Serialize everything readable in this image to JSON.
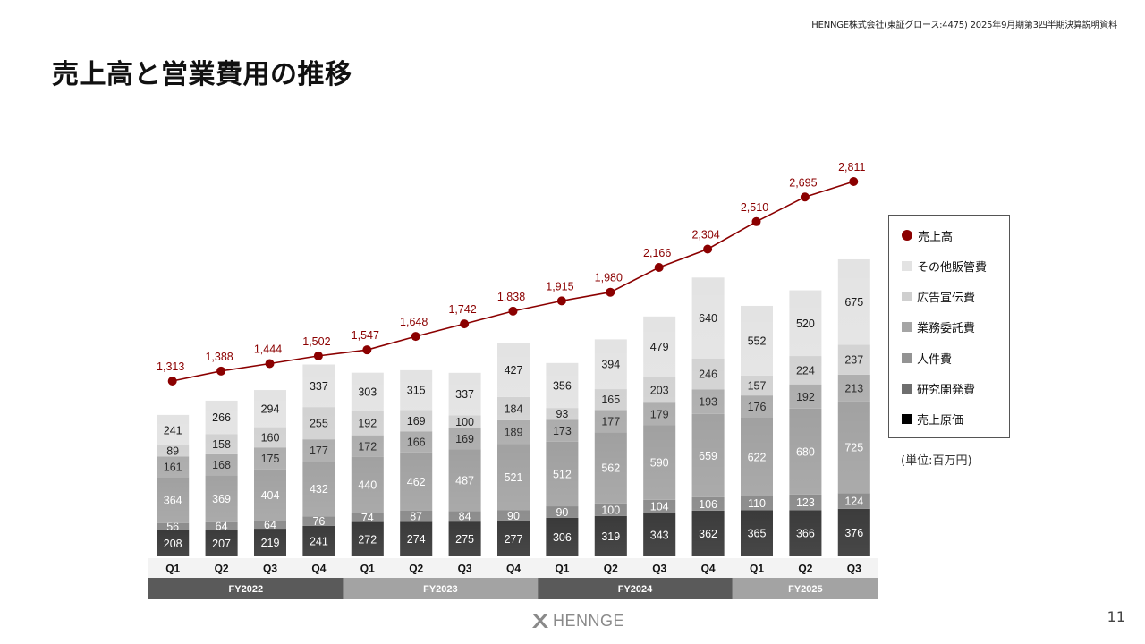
{
  "header": {
    "note": "HENNGE株式会社(東証グロース:4475) 2025年9月期第3四半期決算説明資料",
    "title": "売上高と営業費用の推移"
  },
  "unit_note": "(単位:百万円)",
  "footer": {
    "logo_text": "HENNGE",
    "page_number": "11"
  },
  "legend": [
    {
      "label": "売上高",
      "color": "#8b0000",
      "marker": "dot"
    },
    {
      "label": "その他販管費",
      "color": "#e3e3e3",
      "marker": "square"
    },
    {
      "label": "広告宣伝費",
      "color": "#cfcfcf",
      "marker": "square"
    },
    {
      "label": "業務委託費",
      "color": "#a5a5a5",
      "marker": "square"
    },
    {
      "label": "人件費",
      "color": "#939393",
      "marker": "square"
    },
    {
      "label": "研究開発費",
      "color": "#6e6e6e",
      "marker": "square"
    },
    {
      "label": "売上原価",
      "color": "#000000",
      "marker": "square"
    }
  ],
  "chart_data": {
    "type": "bar",
    "stacked": true,
    "categories": [
      "Q1",
      "Q2",
      "Q3",
      "Q4",
      "Q1",
      "Q2",
      "Q3",
      "Q4",
      "Q1",
      "Q2",
      "Q3",
      "Q4",
      "Q1",
      "Q2",
      "Q3"
    ],
    "groups": [
      {
        "label": "FY2022",
        "count": 4,
        "color": "#5a5a5a"
      },
      {
        "label": "FY2023",
        "count": 4,
        "color": "#a3a3a3"
      },
      {
        "label": "FY2024",
        "count": 4,
        "color": "#5a5a5a"
      },
      {
        "label": "FY2025",
        "count": 3,
        "color": "#a3a3a3"
      }
    ],
    "series": [
      {
        "name": "売上原価",
        "color": "#000000",
        "label_color": "#ffffff",
        "values": [
          208,
          207,
          219,
          241,
          272,
          274,
          275,
          277,
          306,
          319,
          343,
          362,
          365,
          366,
          376
        ]
      },
      {
        "name": "研究開発費",
        "color": "#6e6e6e",
        "label_color": "#ffffff",
        "values": [
          56,
          64,
          64,
          76,
          74,
          87,
          84,
          90,
          90,
          100,
          104,
          106,
          110,
          123,
          124
        ]
      },
      {
        "name": "人件費",
        "color": "#939393",
        "label_color": "#ffffff",
        "values": [
          364,
          369,
          404,
          432,
          440,
          462,
          487,
          521,
          512,
          562,
          590,
          659,
          622,
          680,
          725
        ]
      },
      {
        "name": "業務委託費",
        "color": "#a5a5a5",
        "label_color": "#111111",
        "values": [
          161,
          168,
          175,
          177,
          172,
          166,
          169,
          189,
          173,
          177,
          179,
          193,
          176,
          192,
          213
        ]
      },
      {
        "name": "広告宣伝費",
        "color": "#cfcfcf",
        "label_color": "#111111",
        "values": [
          89,
          158,
          160,
          255,
          192,
          169,
          100,
          184,
          93,
          165,
          203,
          246,
          157,
          224,
          237
        ]
      },
      {
        "name": "その他販管費",
        "color": "#e3e3e3",
        "label_color": "#111111",
        "values": [
          241,
          266,
          294,
          337,
          303,
          315,
          337,
          427,
          356,
          394,
          479,
          640,
          552,
          520,
          675
        ]
      }
    ],
    "line_series": {
      "name": "売上高",
      "color": "#8b0000",
      "values": [
        1313,
        1388,
        1444,
        1502,
        1547,
        1648,
        1742,
        1838,
        1915,
        1980,
        2166,
        2304,
        2510,
        2695,
        2811
      ],
      "labels": [
        "1,313",
        "1,388",
        "1,444",
        "1,502",
        "1,547",
        "1,648",
        "1,742",
        "1,838",
        "1,915",
        "1,980",
        "2,166",
        "2,304",
        "2,510",
        "2,695",
        "2,811"
      ]
    },
    "bar_value_max_approx": 2500,
    "line_value_range_approx": [
      1313,
      2811
    ],
    "grid": false,
    "legend_position": "right"
  }
}
